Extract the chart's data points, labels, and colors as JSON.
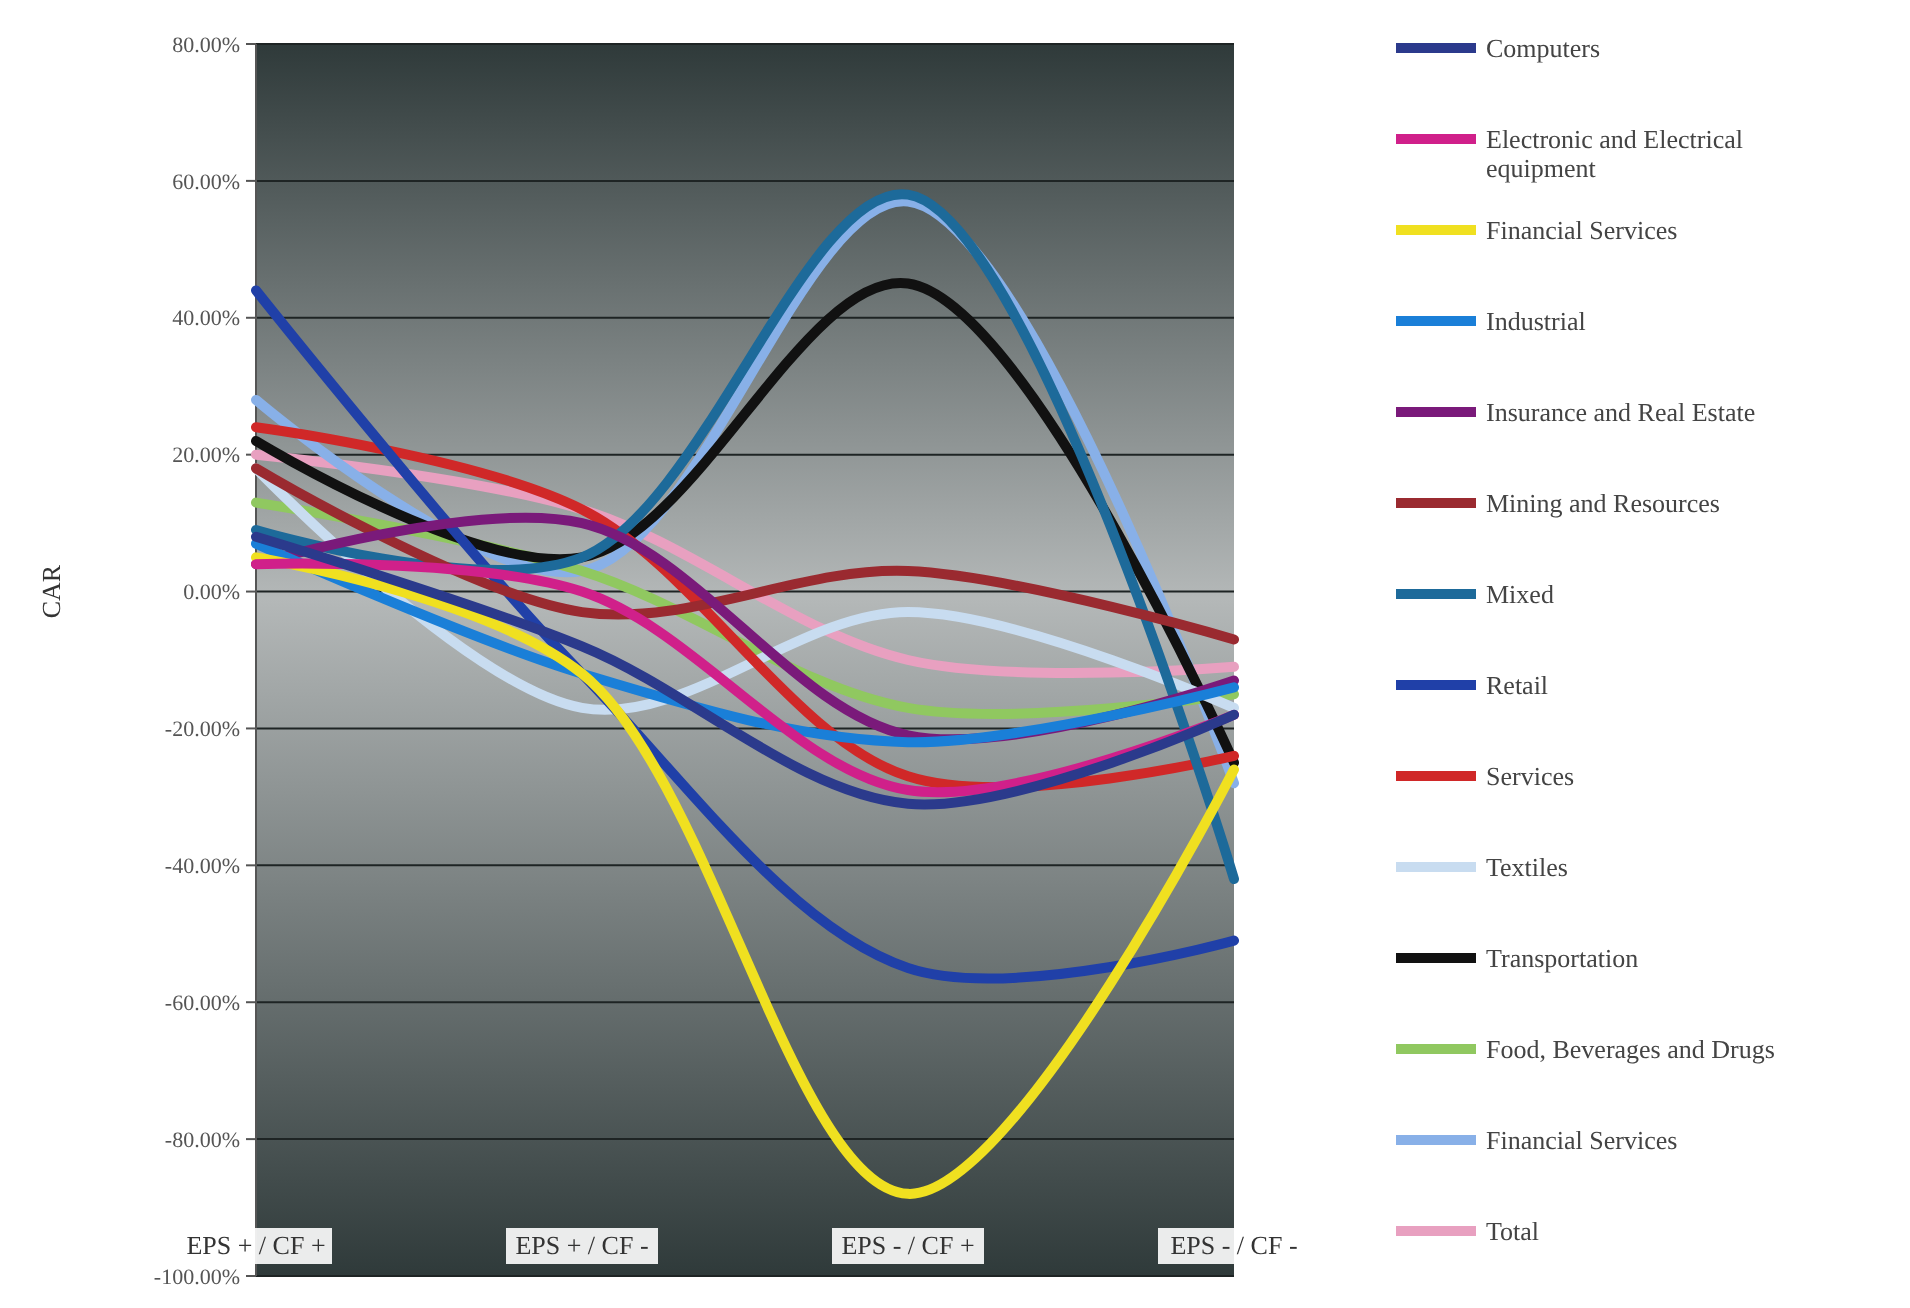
{
  "chart_data": {
    "type": "line",
    "ylabel": "CAR",
    "categories": [
      "EPS + / CF +",
      "EPS + / CF -",
      "EPS - / CF +",
      "EPS - / CF -"
    ],
    "ylim": [
      -100,
      80
    ],
    "yticks": [
      {
        "value": -100,
        "label": "-100.00%"
      },
      {
        "value": -80,
        "label": "-80.00%"
      },
      {
        "value": -60,
        "label": "-60.00%"
      },
      {
        "value": -40,
        "label": "-40.00%"
      },
      {
        "value": -20,
        "label": "-20.00%"
      },
      {
        "value": 0,
        "label": "0.00%"
      },
      {
        "value": 20,
        "label": "20.00%"
      },
      {
        "value": 40,
        "label": "40.00%"
      },
      {
        "value": 60,
        "label": "60.00%"
      },
      {
        "value": 80,
        "label": "80.00%"
      }
    ],
    "grid": "y",
    "legend": "right",
    "marker": "none",
    "line_style": "solid",
    "series": [
      {
        "name": "Computers",
        "color": "#2b3a8c",
        "values": [
          8,
          -8,
          -31,
          -18
        ]
      },
      {
        "name": "Electronic and Electrical equipment",
        "color": "#d0208a",
        "values": [
          4,
          0,
          -29,
          -18
        ]
      },
      {
        "name": "Financial Services",
        "color": "#f0e020",
        "values": [
          5,
          -12,
          -88,
          -26
        ]
      },
      {
        "name": "Industrial",
        "color": "#1a7fd8",
        "values": [
          7,
          -12,
          -22,
          -14
        ]
      },
      {
        "name": "Insurance and Real Estate",
        "color": "#7a1a7a",
        "values": [
          4,
          10,
          -21,
          -13
        ]
      },
      {
        "name": "Mining and Resources",
        "color": "#9a2a30",
        "values": [
          18,
          -3,
          3,
          -7
        ]
      },
      {
        "name": "Mixed",
        "color": "#1d6a9a",
        "values": [
          9,
          5,
          58,
          -42
        ]
      },
      {
        "name": "Retail",
        "color": "#2040a8",
        "values": [
          44,
          -12,
          -55,
          -51
        ]
      },
      {
        "name": "Services",
        "color": "#d02828",
        "values": [
          24,
          12,
          -27,
          -24
        ]
      },
      {
        "name": "Textiles",
        "color": "#c8dcf0",
        "values": [
          18,
          -17,
          -3,
          -17
        ]
      },
      {
        "name": "Transportation",
        "color": "#111111",
        "values": [
          22,
          5,
          45,
          -25
        ]
      },
      {
        "name": "Food, Beverages and Drugs",
        "color": "#90c860",
        "values": [
          13,
          3,
          -17,
          -15
        ]
      },
      {
        "name": "Financial Services",
        "color": "#88b0e8",
        "values": [
          28,
          3,
          57,
          -28
        ]
      },
      {
        "name": "Total",
        "color": "#e8a0c0",
        "values": [
          20,
          12,
          -10,
          -11
        ]
      }
    ]
  }
}
